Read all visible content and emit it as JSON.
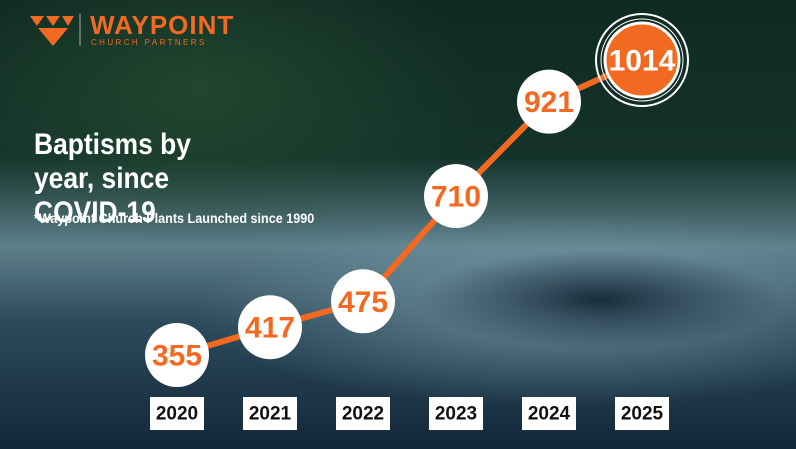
{
  "logo": {
    "name": "WAYPOINT",
    "tagline": "CHURCH PARTNERS"
  },
  "chart_data": {
    "type": "line",
    "title": "Baptisms by year, since COVID-19",
    "subtitle": "*Waypoint Church Plants Launched since 1990",
    "categories": [
      "2020",
      "2021",
      "2022",
      "2023",
      "2024",
      "2025"
    ],
    "values": [
      355,
      417,
      475,
      710,
      921,
      1014
    ],
    "color": "#f26a21"
  }
}
